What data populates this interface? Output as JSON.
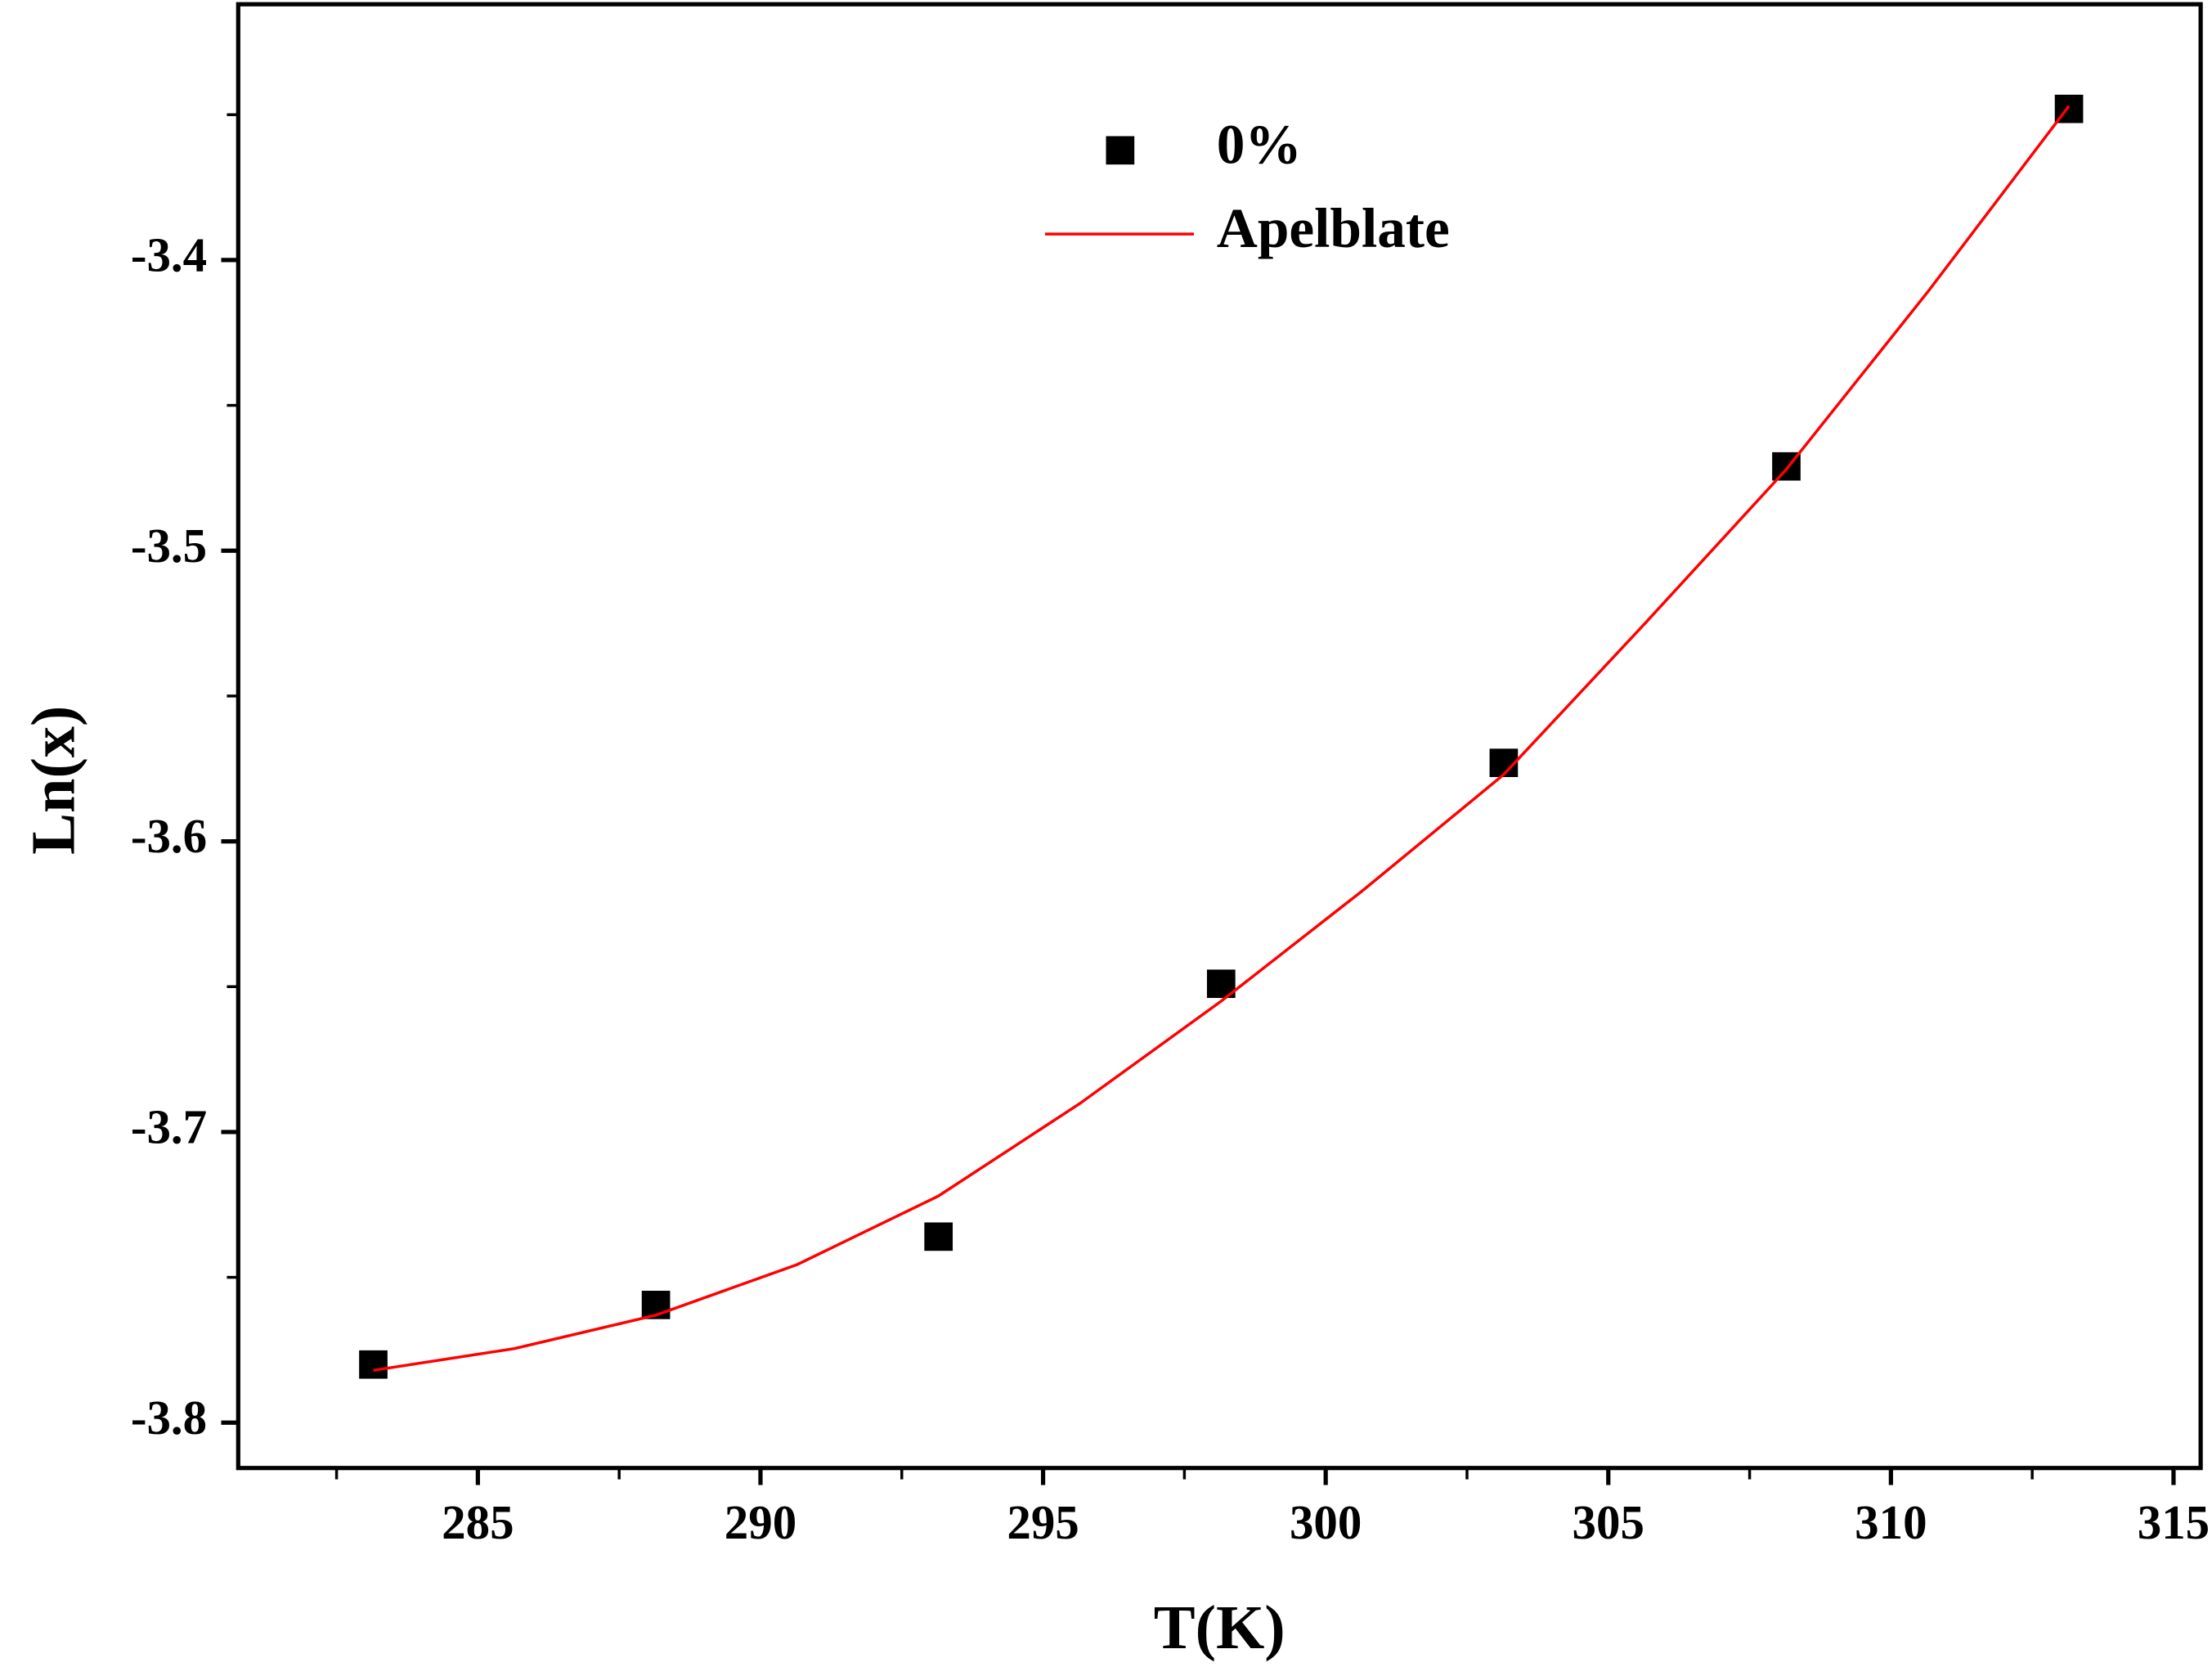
{
  "chart_data": {
    "type": "scatter",
    "xlabel": "T(K)",
    "ylabel": "Ln(x)",
    "xlim": [
      280.76,
      315.48
    ],
    "ylim": [
      -3.8156,
      -3.312
    ],
    "xticks": [
      285,
      290,
      295,
      300,
      305,
      310,
      315
    ],
    "yticks": [
      -3.8,
      -3.7,
      -3.6,
      -3.5,
      -3.4
    ],
    "xminor_ticks": [
      282.5,
      287.5,
      292.5,
      297.5,
      302.5,
      307.5,
      312.5
    ],
    "yminor_ticks": [
      -3.75,
      -3.65,
      -3.55,
      -3.45,
      -3.35
    ],
    "legend": "top-center",
    "series": [
      {
        "name": "0%",
        "type": "scatter",
        "color": "#000000",
        "x": [
          283.15,
          288.15,
          293.15,
          298.15,
          303.15,
          308.15,
          313.15
        ],
        "values": [
          -3.78,
          -3.7595,
          -3.736,
          -3.649,
          -3.573,
          -3.471,
          -3.348
        ]
      },
      {
        "name": "Apelblate",
        "type": "line",
        "color": "#ff0000",
        "x": [
          283.15,
          285.65,
          288.15,
          290.65,
          293.15,
          295.65,
          298.15,
          300.65,
          303.15,
          305.65,
          308.15,
          310.65,
          313.15
        ],
        "values": [
          -3.782,
          -3.7745,
          -3.763,
          -3.7456,
          -3.722,
          -3.6902,
          -3.655,
          -3.617,
          -3.577,
          -3.525,
          -3.472,
          -3.411,
          -3.347
        ]
      }
    ]
  }
}
